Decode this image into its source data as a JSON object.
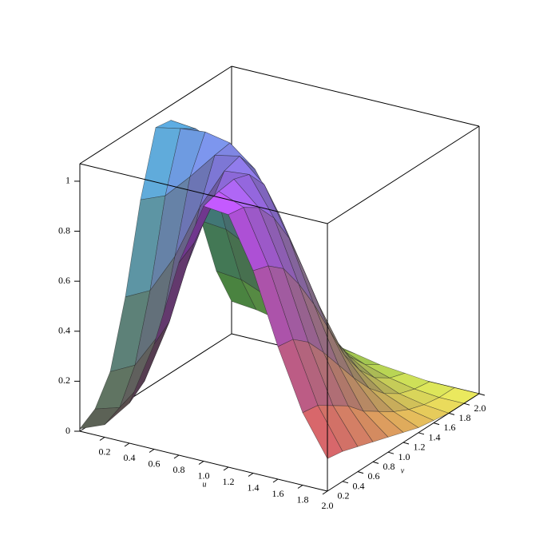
{
  "chart_data": {
    "type": "surface",
    "xlabel": "u",
    "ylabel": "v",
    "x": [
      0,
      0.2,
      0.4,
      0.6,
      0.8,
      1,
      1.2,
      1.4,
      1.6,
      1.8,
      2
    ],
    "y": [
      0,
      0.2,
      0.4,
      0.6,
      0.8,
      1,
      1.2,
      1.4,
      1.6,
      1.8,
      2
    ],
    "z": [
      [
        0.01,
        0.05,
        0.16,
        0.42,
        0.77,
        1.02,
        1.01,
        0.81,
        0.53,
        0.29,
        0.13
      ],
      [
        0.05,
        0.08,
        0.21,
        0.47,
        0.81,
        1.04,
        1.0,
        0.79,
        0.52,
        0.28,
        0.12
      ],
      [
        0.16,
        0.21,
        0.36,
        0.63,
        0.91,
        1.05,
        0.96,
        0.74,
        0.47,
        0.24,
        0.1
      ],
      [
        0.42,
        0.47,
        0.63,
        0.85,
        1.02,
        1.03,
        0.88,
        0.64,
        0.39,
        0.2,
        0.08
      ],
      [
        0.77,
        0.81,
        0.91,
        1.02,
        1.04,
        0.95,
        0.76,
        0.52,
        0.3,
        0.14,
        0.06
      ],
      [
        1.02,
        1.04,
        1.05,
        1.03,
        0.95,
        0.79,
        0.59,
        0.38,
        0.21,
        0.1,
        0.04
      ],
      [
        1.01,
        1.0,
        0.96,
        0.88,
        0.76,
        0.59,
        0.41,
        0.24,
        0.13,
        0.06,
        0.02
      ],
      [
        0.81,
        0.79,
        0.74,
        0.64,
        0.52,
        0.38,
        0.24,
        0.14,
        0.07,
        0.03,
        0.01
      ],
      [
        0.53,
        0.52,
        0.47,
        0.39,
        0.3,
        0.21,
        0.13,
        0.07,
        0.03,
        0.01,
        0.0
      ],
      [
        0.29,
        0.28,
        0.24,
        0.2,
        0.14,
        0.1,
        0.06,
        0.03,
        0.01,
        0.0,
        0.0
      ],
      [
        0.13,
        0.12,
        0.1,
        0.08,
        0.06,
        0.04,
        0.02,
        0.01,
        0.0,
        0.0,
        0.0
      ]
    ],
    "xlim": [
      0,
      2
    ],
    "ylim": [
      0,
      2
    ],
    "zlim": [
      0,
      1.07
    ],
    "xticks": [
      0.2,
      0.4,
      0.6,
      0.8,
      {
        "value": 1,
        "label": "1.0"
      },
      1.2,
      1.4,
      1.6,
      1.8,
      {
        "value": 2,
        "label": "2.0"
      }
    ],
    "yticks": [
      0.2,
      0.4,
      0.6,
      0.8,
      {
        "value": 1,
        "label": "1.0"
      },
      1.2,
      1.4,
      1.6,
      1.8,
      {
        "value": 2,
        "label": "2.0"
      }
    ],
    "zticks": [
      0,
      0.2,
      0.4,
      0.6,
      0.8,
      1
    ]
  }
}
